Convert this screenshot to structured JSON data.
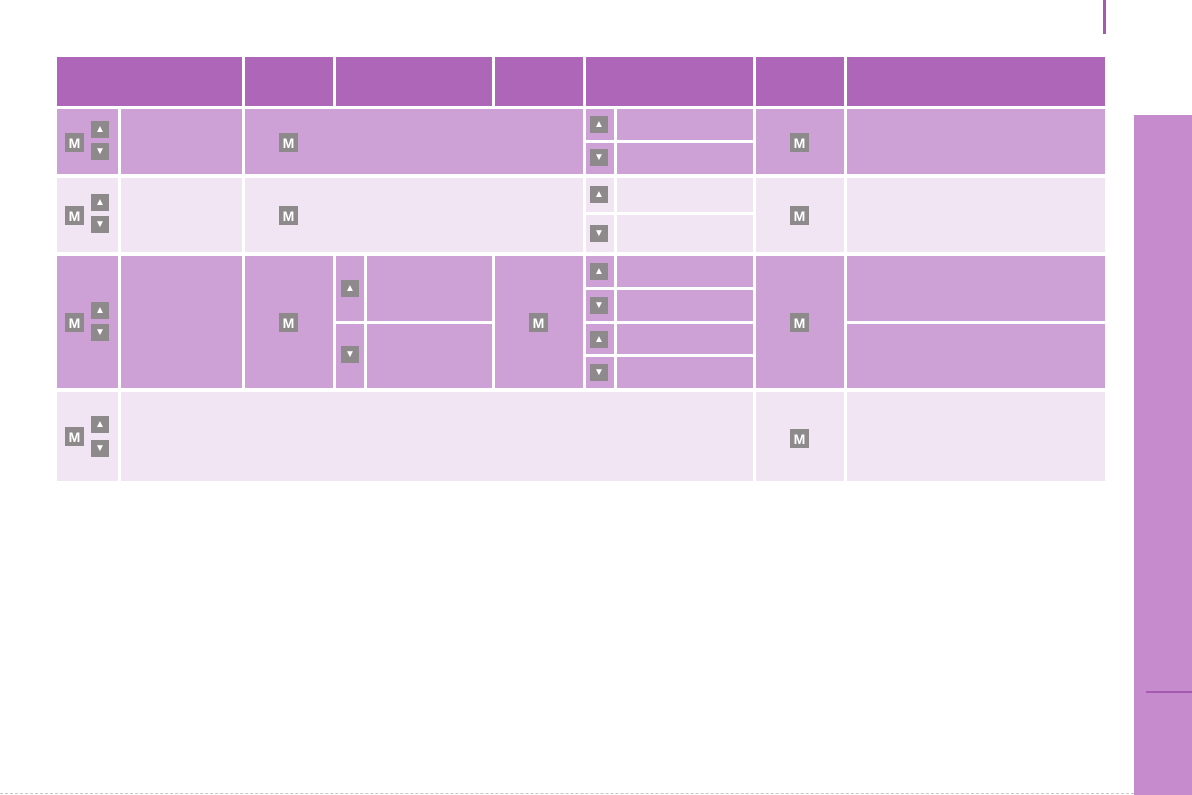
{
  "keys": {
    "menu": "M",
    "up": "▲",
    "down": "▼"
  },
  "colors": {
    "header": "#ad66b8",
    "row_dark": "#cda1d6",
    "row_light": "#f1e4f3",
    "key_bg": "#8e8a8b",
    "side_tab": "#c68bcd"
  }
}
